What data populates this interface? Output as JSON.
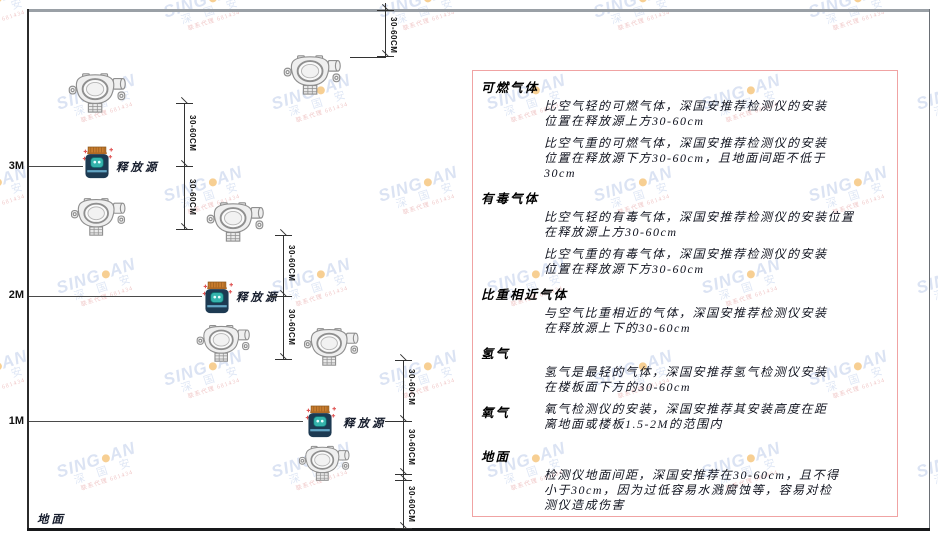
{
  "diagram": {
    "wall_labels": [
      "3M",
      "2M",
      "1M"
    ],
    "ground_label": "地面",
    "source_label": "释放源",
    "dim_label": "30-60CM"
  },
  "panel": {
    "sections": [
      {
        "heading": "可燃气体",
        "paragraphs": [
          "比空气轻的可燃气体，深国安推荐检测仪的安装\n位置在释放源上方30-60cm",
          "比空气重的可燃气体，深国安推荐检测仪的安装\n位置在释放源下方30-60cm，且地面间距不低于\n30cm"
        ]
      },
      {
        "heading": "有毒气体",
        "paragraphs": [
          "比空气轻的有毒气体，深国安推荐检测仪的安装位置\n在释放源上方30-60cm",
          "比空气重的有毒气体，深国安推荐检测仪的安装\n位置在释放源下方30-60cm"
        ]
      },
      {
        "heading": "比重相近气体",
        "paragraphs": [
          "与空气比重相近的气体，深国安推荐检测仪安装\n在释放源上下的30-60cm"
        ]
      },
      {
        "heading": "氢气",
        "paragraphs": [
          "氢气是最轻的气体，深国安推荐氢气检测仪安装\n在楼板面下方的30-60cm"
        ]
      },
      {
        "heading": "氧气",
        "inline": true,
        "paragraphs": [
          "氧气检测仪的安装，深国安推荐其安装高度在距\n离地面或楼板1.5-2M的范围内"
        ]
      },
      {
        "heading": "地面",
        "gap": true,
        "paragraphs": [
          "检测仪地面间距，深国安推荐在30-60cm，且不得\n小于30cm，因为过低容易水溅腐蚀等，容易对检\n测仪造成伤害"
        ]
      }
    ]
  },
  "watermark": {
    "brand_left": "SING",
    "brand_right": "AN",
    "cn_text": "深 国 安",
    "sub_text": "联系代理 681434"
  },
  "colors": {
    "panel_border": "#f0a3a3",
    "watermark_blue": "#bfcdea",
    "watermark_dot": "#f2a93b",
    "source_cap": "#c87c2e",
    "source_body": "#1d3a52",
    "source_face": "#35b3ac"
  }
}
